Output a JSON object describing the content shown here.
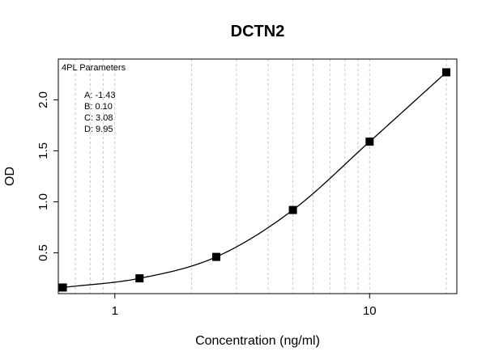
{
  "chart_data": {
    "type": "scatter",
    "title": "DCTN2",
    "xlabel": "Concentration (ng/ml)",
    "ylabel": "OD",
    "x_scale": "log",
    "xlim": [
      0.6,
      22
    ],
    "ylim": [
      0.1,
      2.4
    ],
    "x_ticks": [
      1,
      10
    ],
    "x_tick_labels": [
      "1",
      "10"
    ],
    "y_ticks": [
      0.5,
      1.0,
      1.5,
      2.0
    ],
    "y_tick_labels": [
      "0.5",
      "1.0",
      "1.5",
      "2.0"
    ],
    "grid": "vertical dashed at log minor ticks",
    "series": [
      {
        "x": [
          0.625,
          1.25,
          2.5,
          5,
          10,
          20
        ],
        "y": [
          0.16,
          0.25,
          0.46,
          0.92,
          1.59,
          2.27
        ],
        "marker": "filled-square"
      }
    ],
    "fit": {
      "model": "4PL",
      "A": -1.43,
      "B": 0.1,
      "C": 3.08,
      "D": 9.95
    },
    "legend": {
      "title": "4PL Parameters",
      "entries": [
        "A: -1.43",
        "B: 0.10",
        "C: 3.08",
        "D: 9.95"
      ],
      "placement": "top-left"
    }
  }
}
